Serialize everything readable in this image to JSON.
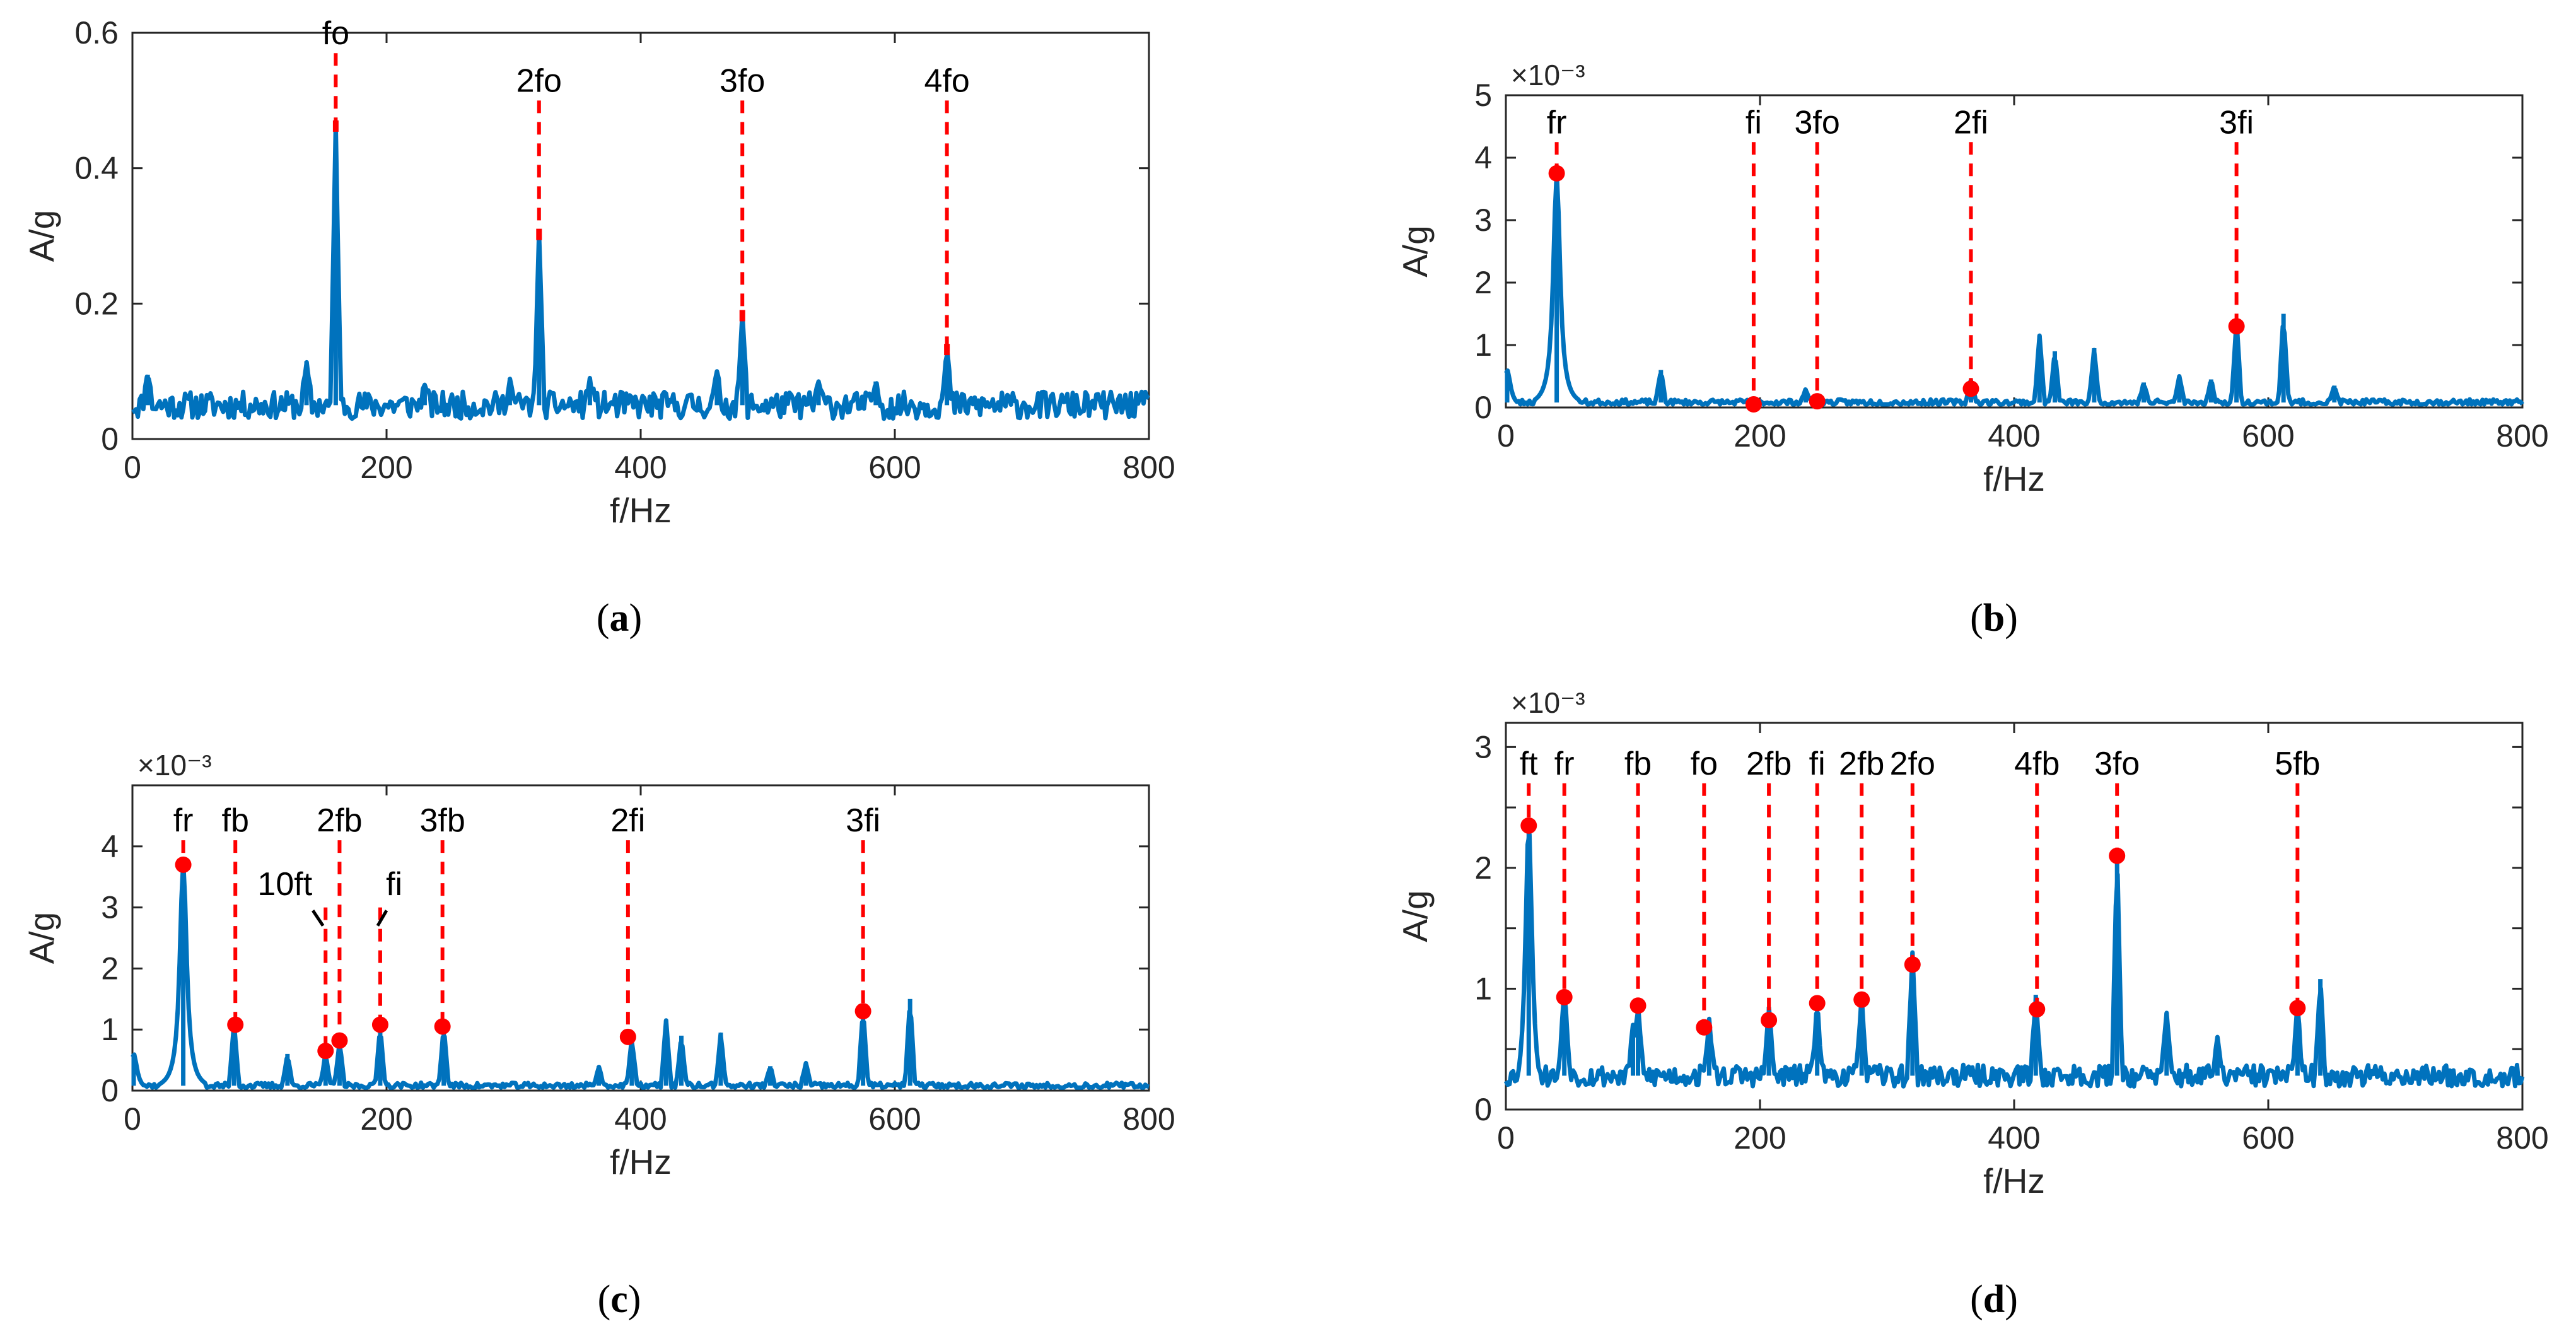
{
  "chart_data": [
    {
      "type": "line",
      "caption": "a",
      "xlabel": "f/Hz",
      "ylabel": "A/g",
      "exponent": "",
      "xlim": [
        0,
        800
      ],
      "ylim": [
        0,
        0.6
      ],
      "xticks": [
        0,
        200,
        400,
        600,
        800
      ],
      "xtick_labels": [
        "0",
        "200",
        "400",
        "600",
        "800"
      ],
      "yticks": [
        0,
        0.2,
        0.4,
        0.6
      ],
      "ytick_labels": [
        "0",
        "0.2",
        "0.4",
        "0.6"
      ],
      "baseline": 0.05,
      "noise": 0.02,
      "seed": 11,
      "series": [
        {
          "name": "spectrum",
          "peaks": [
            [
              160,
              0.465
            ],
            [
              320,
              0.305
            ],
            [
              480,
              0.185
            ],
            [
              641,
              0.135
            ],
            [
              137,
              0.115
            ],
            [
              297,
              0.09
            ],
            [
              585,
              0.085
            ],
            [
              12,
              0.095
            ],
            [
              230,
              0.08
            ],
            [
              360,
              0.09
            ],
            [
              460,
              0.1
            ],
            [
              540,
              0.085
            ]
          ]
        }
      ],
      "annotations": [
        {
          "label": "fo",
          "x": 160,
          "top": 0.57,
          "bottom": 0.47,
          "marker": 0.465
        },
        {
          "label": "2fo",
          "x": 320,
          "top": 0.5,
          "bottom": 0.3,
          "marker": 0.305
        },
        {
          "label": "3fo",
          "x": 480,
          "top": 0.5,
          "bottom": 0.185,
          "marker": 0.185
        },
        {
          "label": "4fo",
          "x": 641,
          "top": 0.5,
          "bottom": 0.135,
          "marker": 0.135
        }
      ],
      "arrows": []
    },
    {
      "type": "line",
      "caption": "b",
      "xlabel": "f/Hz",
      "ylabel": "A/g",
      "exponent": "×10⁻³",
      "xlim": [
        0,
        800
      ],
      "ylim": [
        0,
        5
      ],
      "xticks": [
        0,
        200,
        400,
        600,
        800
      ],
      "xtick_labels": [
        "0",
        "200",
        "400",
        "600",
        "800"
      ],
      "yticks": [
        0,
        1,
        2,
        3,
        4,
        5
      ],
      "ytick_labels": [
        "0",
        "1",
        "2",
        "3",
        "4",
        "5"
      ],
      "baseline": 0.08,
      "noise": 0.05,
      "seed": 23,
      "series": [
        {
          "name": "spectrum",
          "peaks": [
            [
              40,
              3.75
            ],
            [
              122,
              0.6
            ],
            [
              236,
              0.3
            ],
            [
              366,
              0.45
            ],
            [
              420,
              1.15
            ],
            [
              432,
              0.9
            ],
            [
              463,
              0.95
            ],
            [
              575,
              1.4
            ],
            [
              612,
              1.5
            ],
            [
              502,
              0.4
            ],
            [
              530,
              0.5
            ],
            [
              555,
              0.45
            ],
            [
              652,
              0.35
            ],
            [
              1,
              0.6
            ]
          ]
        }
      ],
      "annotations": [
        {
          "label": "fi",
          "x": 195,
          "top": 4.25,
          "bottom": 0.05,
          "marker": 0.05
        },
        {
          "label": "3fo",
          "x": 245,
          "top": 4.25,
          "bottom": 0.1,
          "marker": 0.1
        },
        {
          "label": "2fi",
          "x": 366,
          "top": 4.25,
          "bottom": 0.3,
          "marker": 0.3
        },
        {
          "label": "3fi",
          "x": 575,
          "top": 4.25,
          "bottom": 1.3,
          "marker": 1.3
        },
        {
          "label": "fr",
          "x": 40,
          "top": 4.25,
          "bottom": 3.75,
          "marker": 3.75
        }
      ],
      "arrows": []
    },
    {
      "type": "line",
      "caption": "c",
      "xlabel": "f/Hz",
      "ylabel": "A/g",
      "exponent": "×10⁻³",
      "xlim": [
        0,
        800
      ],
      "ylim": [
        0,
        5
      ],
      "xticks": [
        0,
        200,
        400,
        600,
        800
      ],
      "xtick_labels": [
        "0",
        "200",
        "400",
        "600",
        "800"
      ],
      "yticks": [
        0,
        1,
        2,
        3,
        4
      ],
      "ytick_labels": [
        "0",
        "1",
        "2",
        "3",
        "4"
      ],
      "baseline": 0.08,
      "noise": 0.05,
      "seed": 37,
      "series": [
        {
          "name": "spectrum",
          "peaks": [
            [
              40,
              3.75
            ],
            [
              80,
              1.1
            ],
            [
              122,
              0.6
            ],
            [
              152,
              0.62
            ],
            [
              163,
              0.8
            ],
            [
              195,
              1.05
            ],
            [
              245,
              1.05
            ],
            [
              367,
              0.4
            ],
            [
              393,
              0.85
            ],
            [
              420,
              1.15
            ],
            [
              432,
              0.9
            ],
            [
              463,
              0.95
            ],
            [
              575,
              1.35
            ],
            [
              612,
              1.5
            ],
            [
              502,
              0.4
            ],
            [
              530,
              0.45
            ],
            [
              1,
              0.6
            ]
          ]
        }
      ],
      "annotations": [
        {
          "label": "fr",
          "x": 40,
          "top": 4.1,
          "bottom": 3.7,
          "marker": 3.7
        },
        {
          "label": "fb",
          "x": 81,
          "top": 4.1,
          "bottom": 1.08,
          "marker": 1.08
        },
        {
          "label": "2fb",
          "x": 163,
          "top": 4.1,
          "bottom": 0.82,
          "marker": 0.82
        },
        {
          "label": "3fb",
          "x": 244,
          "top": 4.1,
          "bottom": 1.05,
          "marker": 1.05
        },
        {
          "label": "2fi",
          "x": 390,
          "top": 4.1,
          "bottom": 0.88,
          "marker": 0.88
        },
        {
          "label": "3fi",
          "x": 575,
          "top": 4.1,
          "bottom": 1.3,
          "marker": 1.3
        },
        {
          "label": "",
          "x": 152,
          "top": 3.0,
          "bottom": 0.65,
          "marker": 0.65
        },
        {
          "label": "",
          "x": 195,
          "top": 3.0,
          "bottom": 1.08,
          "marker": 1.08
        }
      ],
      "arrows": [
        {
          "label": "10ft",
          "label_x": 120,
          "label_y": 3.2,
          "from_x": 142,
          "from_y": 2.95,
          "to_x": 150,
          "to_y": 2.7
        },
        {
          "label": "fi",
          "label_x": 206,
          "label_y": 3.2,
          "from_x": 200,
          "from_y": 2.95,
          "to_x": 193,
          "to_y": 2.7
        }
      ]
    },
    {
      "type": "line",
      "caption": "d",
      "xlabel": "f/Hz",
      "ylabel": "A/g",
      "exponent": "×10⁻³",
      "xlim": [
        0,
        800
      ],
      "ylim": [
        0,
        3.2
      ],
      "xticks": [
        0,
        200,
        400,
        600,
        800
      ],
      "xtick_labels": [
        "0",
        "200",
        "400",
        "600",
        "800"
      ],
      "yticks": [
        0,
        0.5,
        1,
        1.5,
        2,
        2.5,
        3
      ],
      "ytick_labels": [
        "0",
        "",
        "1",
        "",
        "2",
        "",
        "3"
      ],
      "baseline": 0.28,
      "noise": 0.09,
      "seed": 53,
      "series": [
        {
          "name": "spectrum",
          "peaks": [
            [
              18,
              2.35
            ],
            [
              46,
              0.95
            ],
            [
              104,
              0.88
            ],
            [
              160,
              0.75
            ],
            [
              207,
              0.85
            ],
            [
              245,
              0.92
            ],
            [
              280,
              0.95
            ],
            [
              320,
              1.3
            ],
            [
              417,
              0.95
            ],
            [
              481,
              2.15
            ],
            [
              623,
              0.88
            ],
            [
              641,
              1.08
            ],
            [
              520,
              0.8
            ],
            [
              560,
              0.6
            ],
            [
              100,
              0.7
            ]
          ]
        }
      ],
      "annotations": [
        {
          "label": "ft",
          "x": 18,
          "top": 2.7,
          "bottom": 2.35,
          "marker": 2.35
        },
        {
          "label": "fr",
          "x": 46,
          "top": 2.7,
          "bottom": 0.93,
          "marker": 0.93
        },
        {
          "label": "fb",
          "x": 104,
          "top": 2.7,
          "bottom": 0.86,
          "marker": 0.86
        },
        {
          "label": "fo",
          "x": 156,
          "top": 2.7,
          "bottom": 0.68,
          "marker": 0.68
        },
        {
          "label": "2fb",
          "x": 207,
          "top": 2.7,
          "bottom": 0.74,
          "marker": 0.74
        },
        {
          "label": "fi",
          "x": 245,
          "top": 2.7,
          "bottom": 0.88,
          "marker": 0.88
        },
        {
          "label": "2fb",
          "x": 280,
          "top": 2.7,
          "bottom": 0.91,
          "marker": 0.91
        },
        {
          "label": "2fo",
          "x": 320,
          "top": 2.7,
          "bottom": 1.2,
          "marker": 1.2
        },
        {
          "label": "4fb",
          "x": 418,
          "top": 2.7,
          "bottom": 0.83,
          "marker": 0.83
        },
        {
          "label": "3fo",
          "x": 481,
          "top": 2.7,
          "bottom": 2.1,
          "marker": 2.1
        },
        {
          "label": "5fb",
          "x": 623,
          "top": 2.7,
          "bottom": 0.84,
          "marker": 0.84
        }
      ],
      "arrows": []
    }
  ],
  "colors": {
    "series": "#0072bd",
    "annotation": "#ff0000",
    "axis": "#262626"
  }
}
